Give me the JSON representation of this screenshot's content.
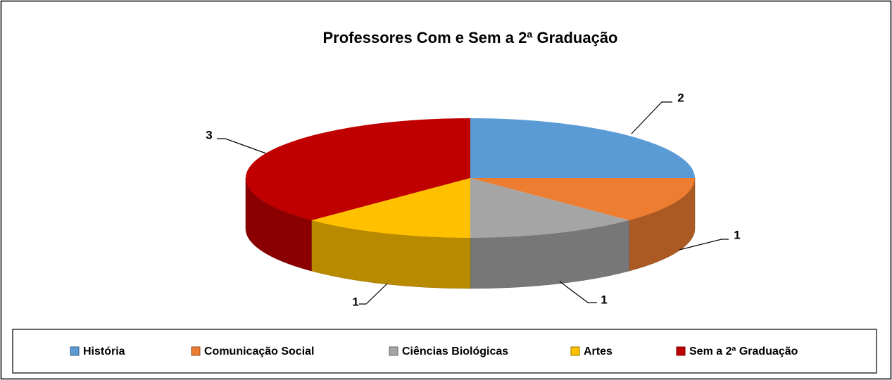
{
  "chart_data": {
    "type": "pie",
    "title": "Professores Com e Sem a 2ª Graduação",
    "categories": [
      "História",
      "Comunicação Social",
      "Ciências Biológicas",
      "Artes",
      "Sem a 2ª Graduação"
    ],
    "values": [
      2,
      1,
      1,
      1,
      3
    ],
    "colors": [
      "#5b9bd5",
      "#ed7d31",
      "#a5a5a5",
      "#ffc000",
      "#c00000"
    ],
    "legend": "bottom"
  }
}
